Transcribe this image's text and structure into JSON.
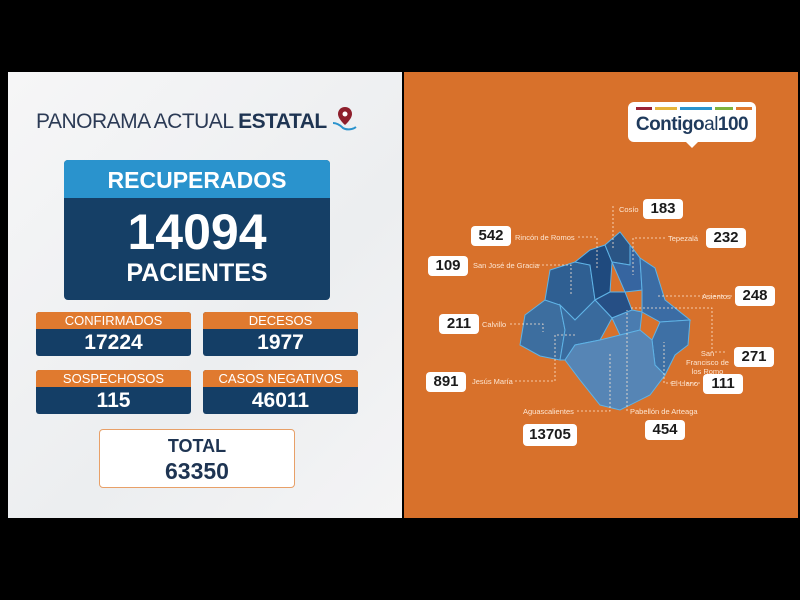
{
  "header": {
    "title_light": "PANORAMA ACTUAL",
    "title_bold": "ESTATAL"
  },
  "recuperados": {
    "label": "RECUPERADOS",
    "value": "14094",
    "unit": "PACIENTES"
  },
  "stats": [
    {
      "label": "CONFIRMADOS",
      "value": "17224"
    },
    {
      "label": "DECESOS",
      "value": "1977"
    },
    {
      "label": "SOSPECHOSOS",
      "value": "115"
    },
    {
      "label": "CASOS NEGATIVOS",
      "value": "46011"
    }
  ],
  "total": {
    "label": "TOTAL",
    "value": "63350"
  },
  "logo": {
    "text_bold": "Contigo",
    "text_light": "al",
    "text_num": "100"
  },
  "municipalities": [
    {
      "name": "Cosío",
      "value": "183"
    },
    {
      "name": "Rincón de Romos",
      "value": "542"
    },
    {
      "name": "Tepezalá",
      "value": "232"
    },
    {
      "name": "San José de Gracia",
      "value": "109"
    },
    {
      "name": "Asientos",
      "value": "248"
    },
    {
      "name": "Calvillo",
      "value": "211"
    },
    {
      "name": "San Francisco de los Romo",
      "value": "271"
    },
    {
      "name": "Jesús María",
      "value": "891"
    },
    {
      "name": "El Llano",
      "value": "111"
    },
    {
      "name": "Aguascalientes",
      "value": "13705"
    },
    {
      "name": "Pabellón de Arteaga",
      "value": "454"
    }
  ],
  "colors": {
    "orange": "#d8712b",
    "navy": "#153f66",
    "blue": "#2a93cd",
    "card_header": "#e07a2f"
  }
}
